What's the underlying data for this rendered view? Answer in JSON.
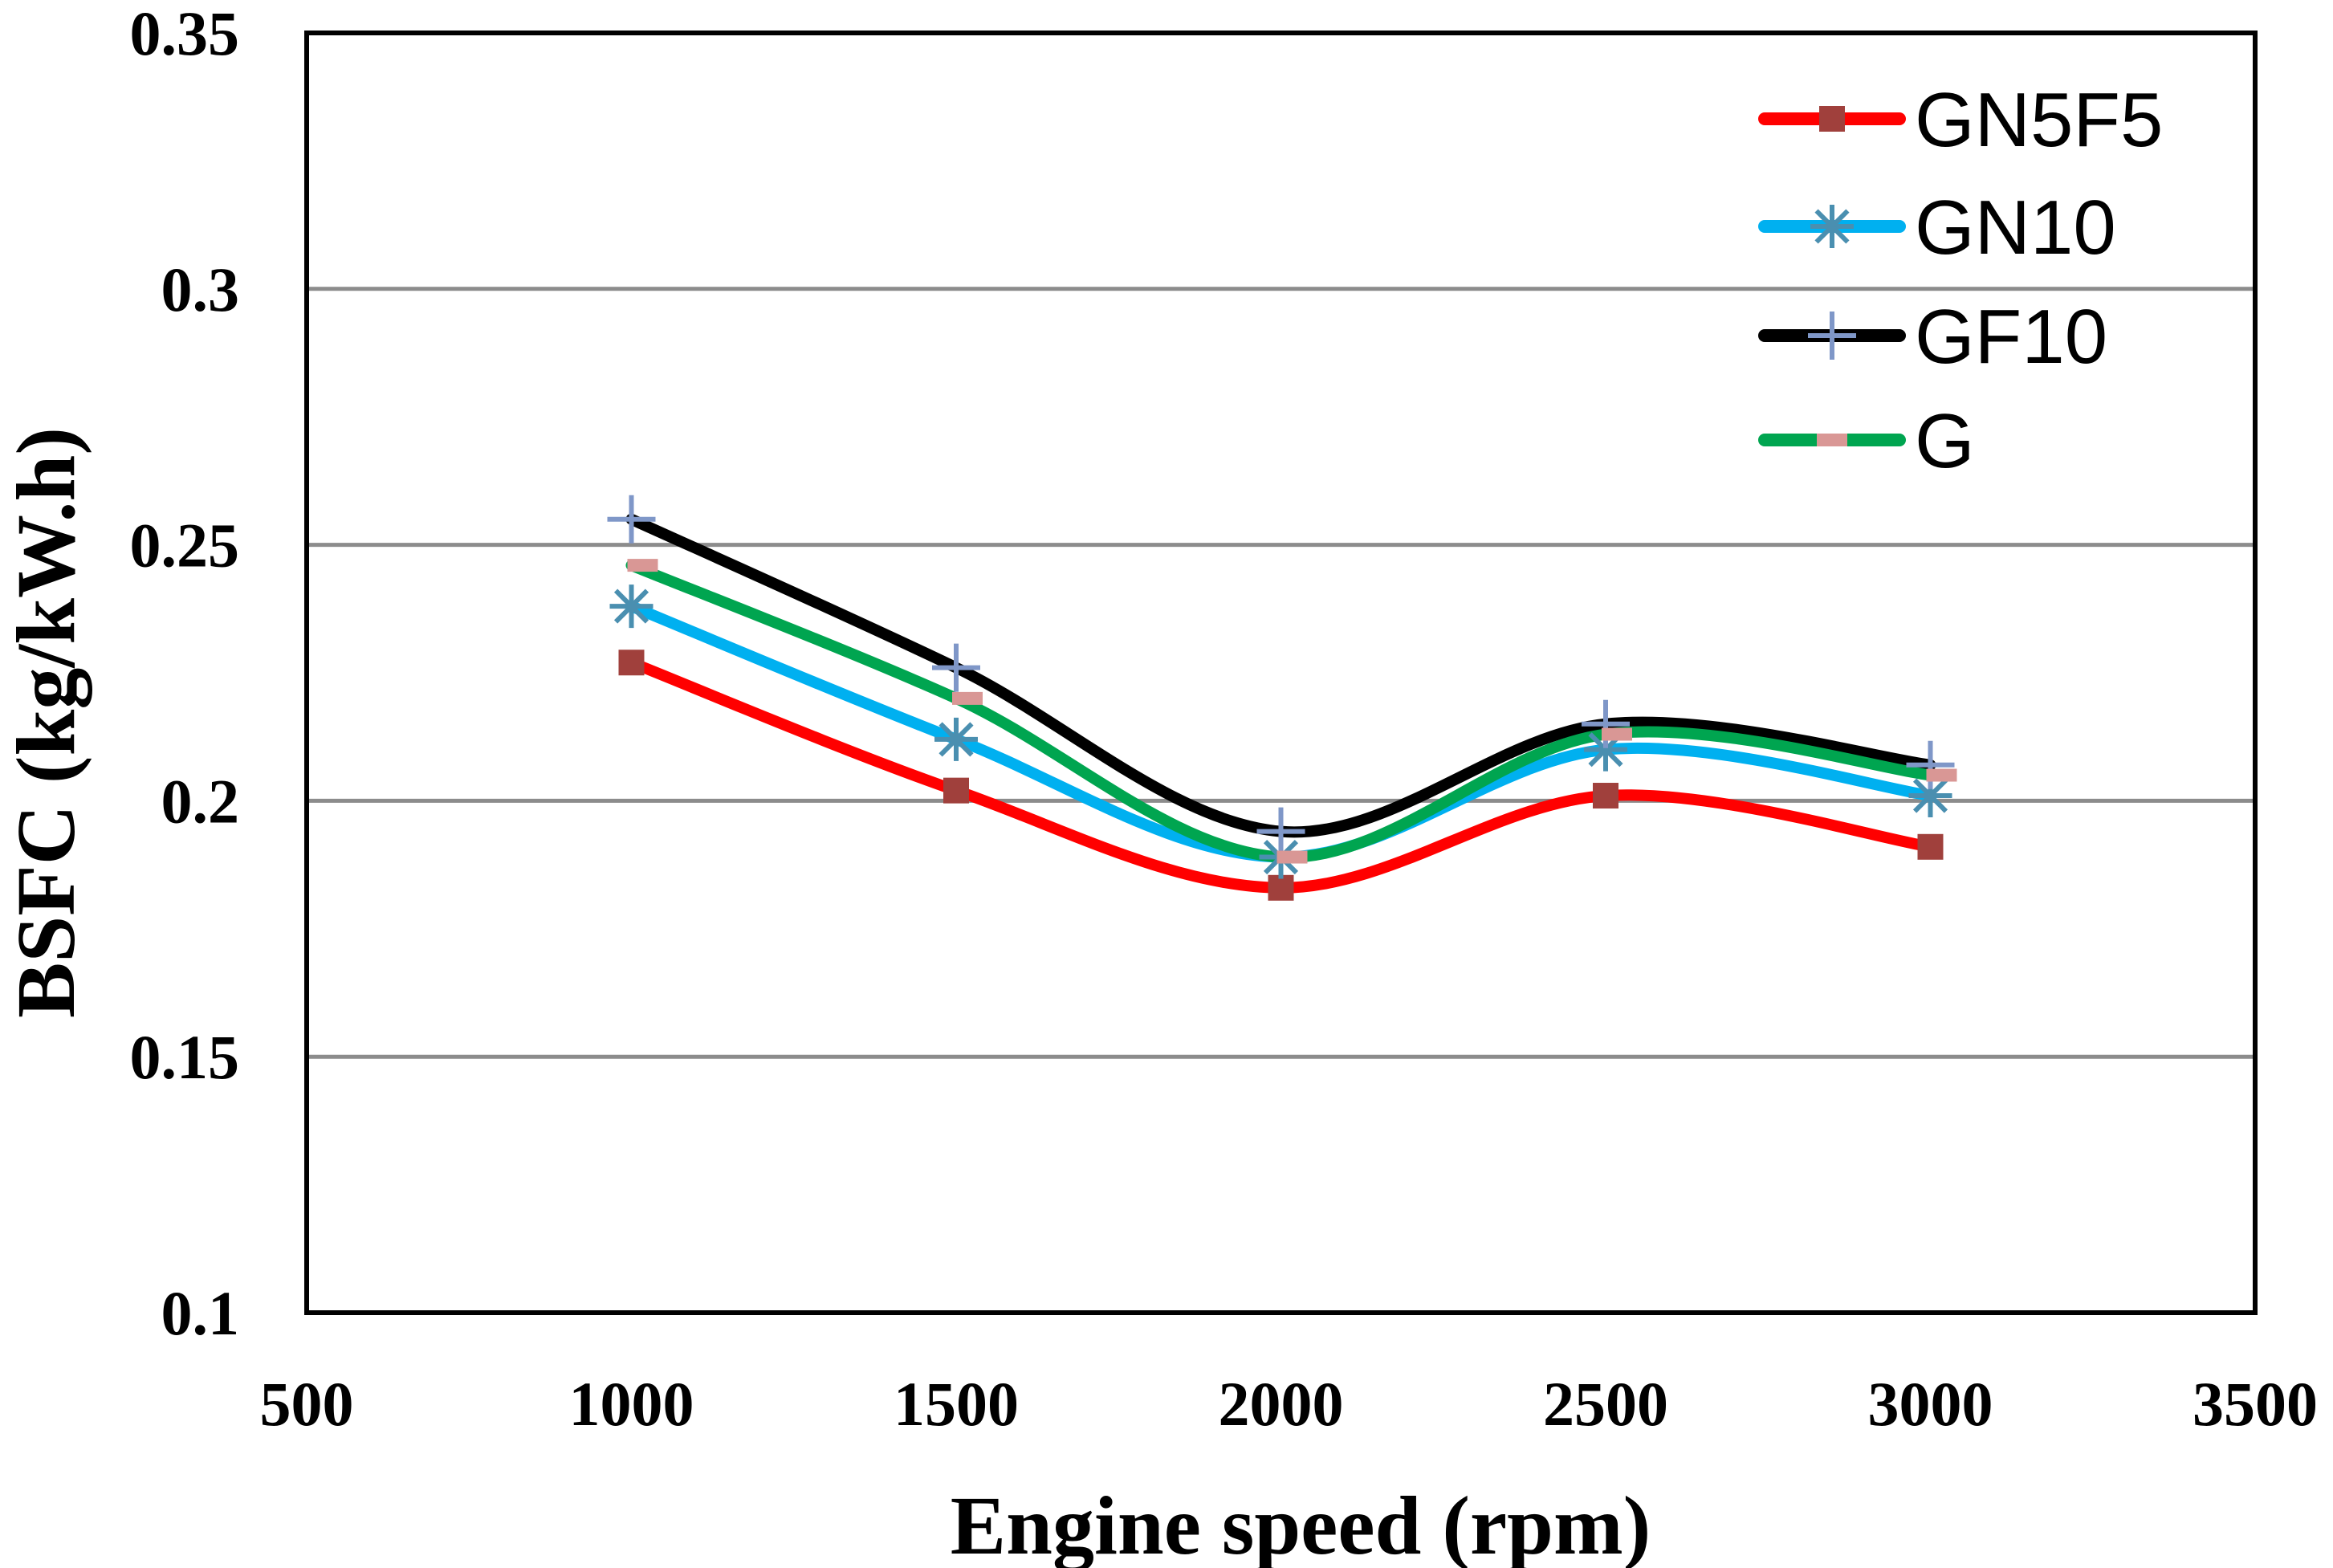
{
  "chart_data": {
    "type": "line",
    "title": "",
    "xlabel": "Engine speed (rpm)",
    "ylabel": "BSFC (kg/kW.h)",
    "xlim": [
      500,
      3500
    ],
    "ylim": [
      0.1,
      0.35
    ],
    "x_ticks": [
      "500",
      "1000",
      "1500",
      "2000",
      "2500",
      "3000",
      "3500"
    ],
    "y_ticks": [
      "0.1",
      "0.15",
      "0.2",
      "0.25",
      "0.3",
      "0.35"
    ],
    "grid": "horizontal",
    "legend_position": "top-right",
    "x": [
      1000,
      1500,
      2000,
      2500,
      3000
    ],
    "series": [
      {
        "name": "GN5F5",
        "color": "#ff0000",
        "marker": "square",
        "marker_color": "#a0403c",
        "values": [
          0.227,
          0.202,
          0.183,
          0.201,
          0.191
        ]
      },
      {
        "name": "GN10",
        "color": "#00b0f0",
        "marker": "asterisk",
        "marker_color": "#4a8fb0",
        "values": [
          0.238,
          0.212,
          0.189,
          0.21,
          0.201
        ]
      },
      {
        "name": "GF10",
        "color": "#000000",
        "marker": "plus",
        "marker_color": "#7f97c8",
        "values": [
          0.255,
          0.226,
          0.194,
          0.215,
          0.207
        ]
      },
      {
        "name": "G",
        "color": "#00a550",
        "marker": "dash",
        "marker_color": "#d99795",
        "values": [
          0.246,
          0.22,
          0.189,
          0.213,
          0.205
        ]
      }
    ]
  }
}
